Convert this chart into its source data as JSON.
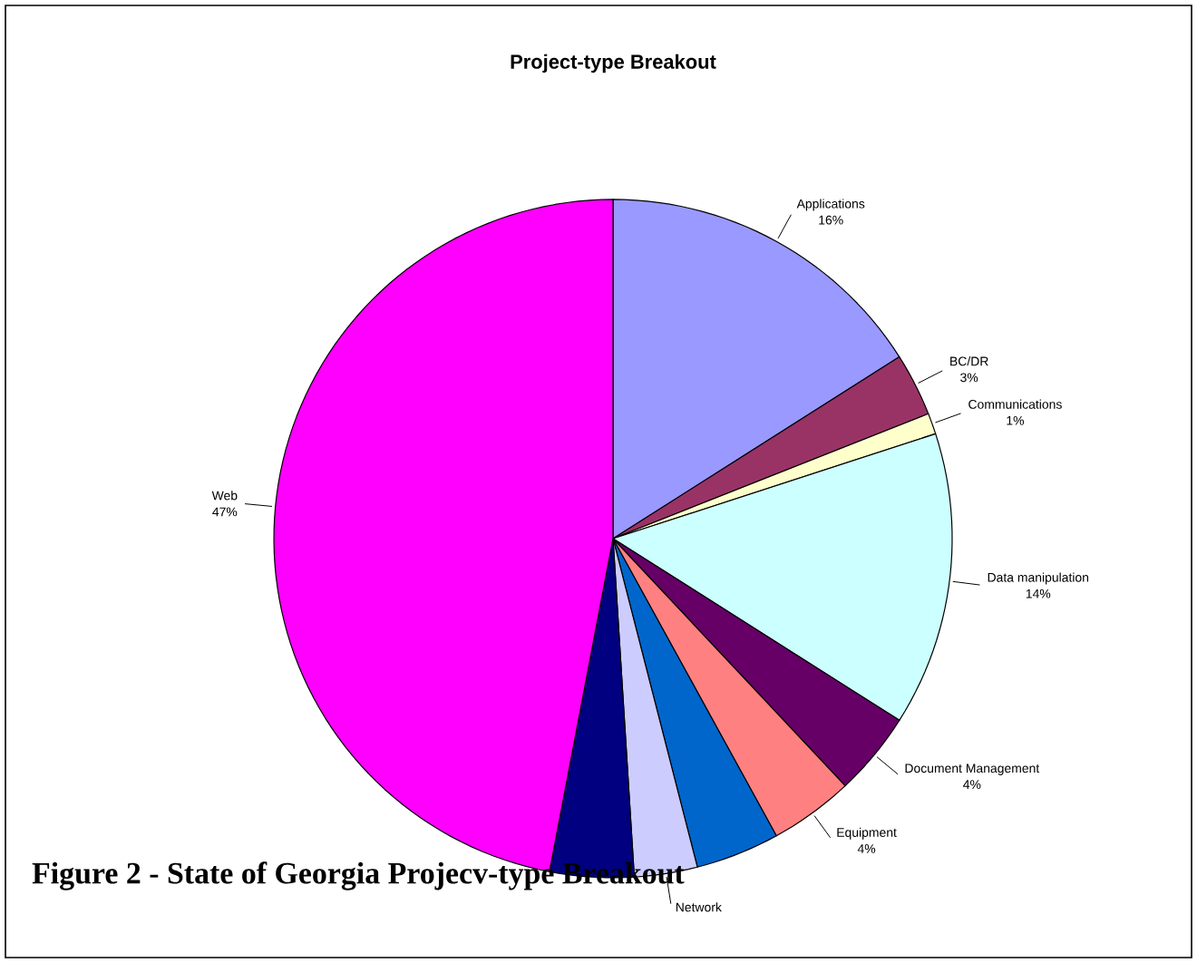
{
  "chart_data": {
    "type": "pie",
    "title": "Project-type Breakout",
    "categories": [
      "Applications",
      "BC/DR",
      "Communications",
      "Data manipulation",
      "Document Management",
      "Equipment",
      null,
      "Network",
      null,
      "Web"
    ],
    "values": [
      16,
      3,
      1,
      14,
      4,
      4,
      4,
      3,
      4,
      47
    ],
    "value_labels": [
      "16%",
      "3%",
      "1%",
      "14%",
      "4%",
      "4%",
      null,
      null,
      null,
      "47%"
    ],
    "colors": [
      "#9999ff",
      "#993366",
      "#ffffcc",
      "#ccffff",
      "#660066",
      "#ff8080",
      "#0066cc",
      "#ccccff",
      "#000080",
      "#ff00ff"
    ],
    "annotations": [
      "Figure 2 - State of Georgia Projecv-type Breakout"
    ]
  }
}
